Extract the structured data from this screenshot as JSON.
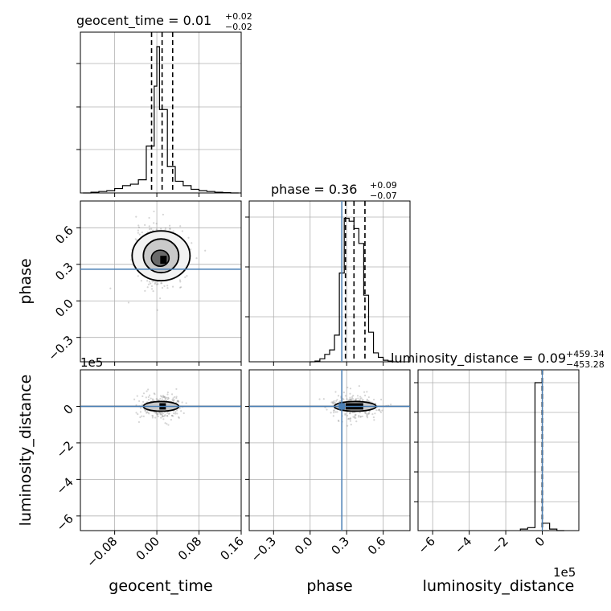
{
  "chart_data": {
    "type": "corner",
    "parameters": [
      "geocent_time",
      "phase",
      "luminosity_distance"
    ],
    "truth": {
      "geocent_time": null,
      "phase": 0.26,
      "luminosity_distance": 0
    },
    "truth_color": "#4a7fb5",
    "quantiles": [
      0.16,
      0.5,
      0.84
    ],
    "grid": true,
    "panels": {
      "geocent_time": {
        "title_name": "geocent_time",
        "title_value": "0.01",
        "title_plus": "+0.02",
        "title_minus": "−0.02",
        "xlim": [
          -0.145,
          0.16
        ],
        "xticks": [
          -0.08,
          0.0,
          0.08,
          0.16
        ],
        "xtick_labels": [
          "−0.08",
          "0.00",
          "0.08",
          "0.16"
        ],
        "quantile_values": [
          -0.01,
          0.01,
          0.03
        ],
        "hist_bins": [
          -0.14,
          -0.125,
          -0.11,
          -0.095,
          -0.08,
          -0.065,
          -0.05,
          -0.035,
          -0.02,
          -0.005,
          0.0,
          0.005,
          0.02,
          0.035,
          0.05,
          0.065,
          0.08,
          0.095,
          0.11,
          0.125,
          0.14,
          0.155
        ],
        "hist_counts": [
          0,
          0.005,
          0.01,
          0.015,
          0.03,
          0.05,
          0.06,
          0.09,
          0.32,
          0.73,
          1.0,
          0.57,
          0.18,
          0.08,
          0.05,
          0.025,
          0.015,
          0.01,
          0.005,
          0.002,
          0
        ]
      },
      "phase": {
        "title_name": "phase",
        "title_value": "0.36",
        "title_plus": "+0.09",
        "title_minus": "−0.07",
        "xlim": [
          -0.5,
          0.82
        ],
        "xticks": [
          -0.3,
          0.0,
          0.3,
          0.6
        ],
        "xtick_labels": [
          "−0.3",
          "0.0",
          "0.3",
          "0.6"
        ],
        "yticks": [
          -0.3,
          0.0,
          0.3,
          0.6
        ],
        "ytick_labels": [
          "−0.3",
          "0.0",
          "0.3",
          "0.6"
        ],
        "quantile_values": [
          0.29,
          0.36,
          0.45
        ],
        "hist_bins": [
          0.0,
          0.04,
          0.08,
          0.12,
          0.16,
          0.2,
          0.24,
          0.28,
          0.32,
          0.36,
          0.4,
          0.44,
          0.48,
          0.52,
          0.56,
          0.6,
          0.64,
          0.68,
          0.72
        ],
        "hist_counts": [
          0,
          0.005,
          0.02,
          0.05,
          0.08,
          0.18,
          0.6,
          0.97,
          0.95,
          0.9,
          0.8,
          0.45,
          0.2,
          0.06,
          0.03,
          0.01,
          0.005,
          0
        ]
      },
      "luminosity_distance": {
        "title_name": "luminosity_distance",
        "title_value": "0.09",
        "title_plus": "+459.34",
        "title_minus": "−453.28",
        "xlim": [
          -680000,
          200000
        ],
        "xticks": [
          -600000,
          -400000,
          -200000,
          0
        ],
        "xtick_labels": [
          "−6",
          "−4",
          "−2",
          "0"
        ],
        "yticks": [
          -600000,
          -400000,
          -200000,
          0
        ],
        "ytick_labels": [
          "−6",
          "−4",
          "−2",
          "0"
        ],
        "offset_label": "1e5",
        "quantile_values": [
          -453,
          0,
          459
        ],
        "hist_bins": [
          -120000,
          -80000,
          -40000,
          0,
          40000,
          80000,
          120000
        ],
        "hist_counts": [
          0.01,
          0.02,
          1.0,
          0.05,
          0.01,
          0
        ]
      }
    }
  }
}
